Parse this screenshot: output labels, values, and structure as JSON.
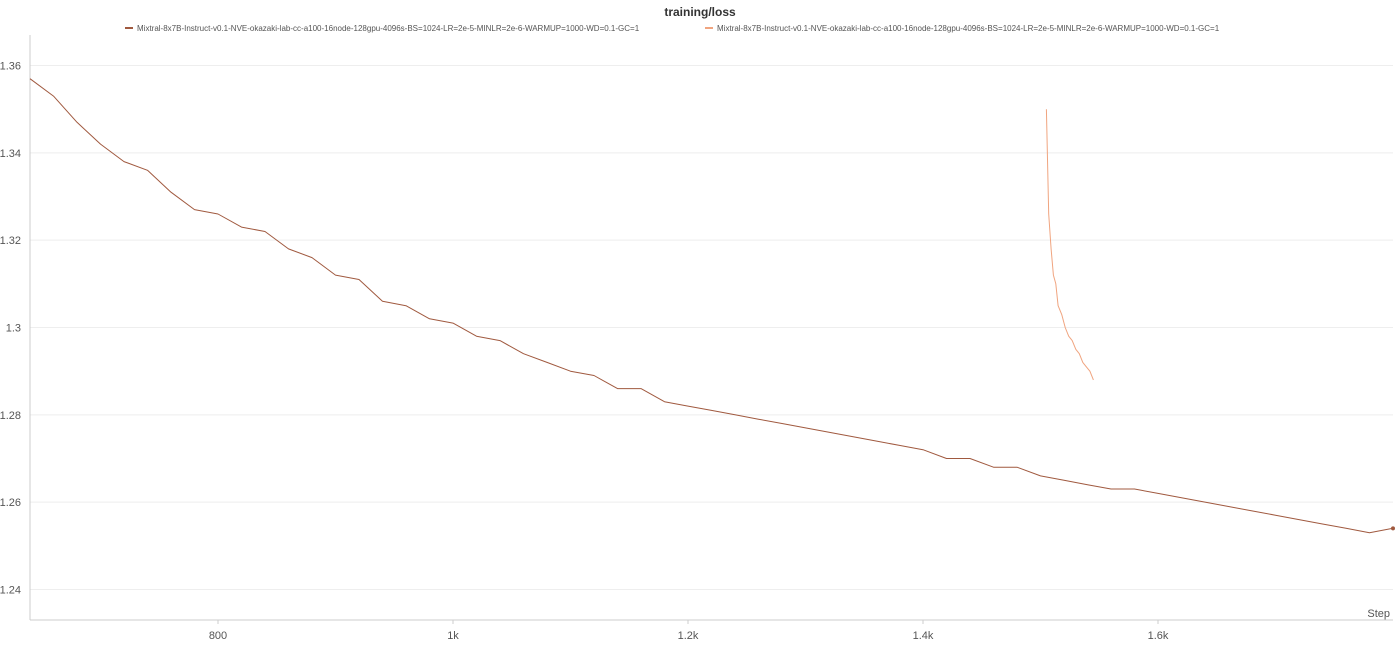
{
  "chart_data": {
    "type": "line",
    "title": "training/loss",
    "xlabel": "Step",
    "ylabel": "",
    "xlim": [
      640,
      1800
    ],
    "ylim": [
      1.233,
      1.367
    ],
    "x_ticks": [
      {
        "value": 800,
        "label": "800"
      },
      {
        "value": 1000,
        "label": "1k"
      },
      {
        "value": 1200,
        "label": "1.2k"
      },
      {
        "value": 1400,
        "label": "1.4k"
      },
      {
        "value": 1600,
        "label": "1.6k"
      }
    ],
    "y_ticks": [
      {
        "value": 1.24,
        "label": "1.24"
      },
      {
        "value": 1.26,
        "label": "1.26"
      },
      {
        "value": 1.28,
        "label": "1.28"
      },
      {
        "value": 1.3,
        "label": "1.3"
      },
      {
        "value": 1.32,
        "label": "1.32"
      },
      {
        "value": 1.34,
        "label": "1.34"
      },
      {
        "value": 1.36,
        "label": "1.36"
      }
    ],
    "grid": true,
    "legend_position": "top-center",
    "series": [
      {
        "name": "Mixtral-8x7B-Instruct-v0.1-NVE-okazaki-lab-cc-a100-16node-128gpu-4096s-BS=1024-LR=2e-5-MINLR=2e-6-WARMUP=1000-WD=0.1-GC=1",
        "color": "#a0593f",
        "x": [
          640,
          660,
          680,
          700,
          720,
          740,
          760,
          780,
          800,
          820,
          840,
          860,
          880,
          900,
          920,
          940,
          960,
          980,
          1000,
          1020,
          1040,
          1060,
          1080,
          1100,
          1120,
          1140,
          1160,
          1180,
          1200,
          1220,
          1240,
          1260,
          1280,
          1300,
          1320,
          1340,
          1360,
          1380,
          1400,
          1420,
          1440,
          1460,
          1480,
          1500,
          1520,
          1540,
          1560,
          1580,
          1600,
          1620,
          1640,
          1660,
          1680,
          1700,
          1720,
          1740,
          1760,
          1780,
          1800
        ],
        "y": [
          1.357,
          1.353,
          1.347,
          1.342,
          1.338,
          1.336,
          1.331,
          1.327,
          1.326,
          1.323,
          1.322,
          1.318,
          1.316,
          1.312,
          1.311,
          1.306,
          1.305,
          1.302,
          1.301,
          1.298,
          1.297,
          1.294,
          1.292,
          1.29,
          1.289,
          1.286,
          1.286,
          1.283,
          1.282,
          1.281,
          1.28,
          1.279,
          1.278,
          1.277,
          1.276,
          1.275,
          1.274,
          1.273,
          1.272,
          1.27,
          1.27,
          1.268,
          1.268,
          1.266,
          1.265,
          1.264,
          1.263,
          1.263,
          1.262,
          1.261,
          1.26,
          1.259,
          1.258,
          1.257,
          1.256,
          1.255,
          1.254,
          1.253,
          1.254
        ]
      },
      {
        "name": "Mixtral-8x7B-Instruct-v0.1-NVE-okazaki-lab-cc-a100-16node-128gpu-4096s-BS=1024-LR=2e-5-MINLR=2e-6-WARMUP=1000-WD=0.1-GC=1",
        "color": "#f0a47f",
        "x": [
          1505,
          1507,
          1509,
          1511,
          1513,
          1515,
          1518,
          1521,
          1524,
          1527,
          1530,
          1533,
          1536,
          1539,
          1542,
          1545
        ],
        "y": [
          1.35,
          1.326,
          1.318,
          1.312,
          1.31,
          1.305,
          1.303,
          1.3,
          1.298,
          1.297,
          1.295,
          1.294,
          1.292,
          1.291,
          1.29,
          1.288
        ]
      }
    ]
  }
}
